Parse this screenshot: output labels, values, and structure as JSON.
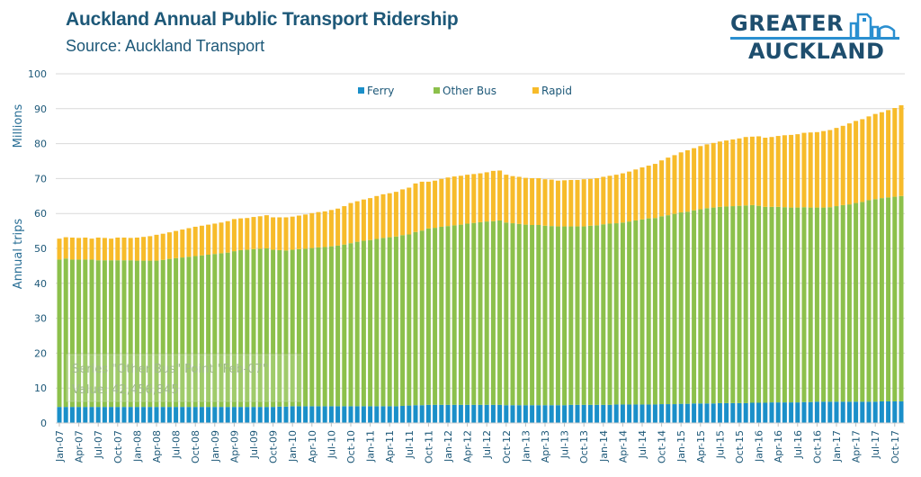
{
  "header": {
    "title": "Auckland Annual Public Transport Ridership",
    "subtitle": "Source: Auckland Transport"
  },
  "logo": {
    "line1": "GREATER",
    "line2": "AUCKLAND",
    "icon": "city-buildings-icon"
  },
  "colors": {
    "ferry": "#1a8fc9",
    "other_bus": "#8cc04b",
    "rapid": "#f7bb2a",
    "grid": "#d9d9d9",
    "text": "#1d5878"
  },
  "tooltip": {
    "line1": "Series \"Other Bus\" Point \"Feb-07\"",
    "line2": "Value: 42,456,845"
  },
  "chart_data": {
    "type": "bar",
    "stacked": true,
    "title": "Auckland Annual Public Transport Ridership",
    "subtitle": "Source: Auckland Transport",
    "xlabel": "",
    "ylabel": "Annual trips",
    "yunit_label": "Millions",
    "ylim": [
      0,
      100
    ],
    "yticks": [
      0,
      10,
      20,
      30,
      40,
      50,
      60,
      70,
      80,
      90,
      100
    ],
    "grid": true,
    "legend_position": "top-center",
    "tick_every": 3,
    "categories": [
      "Jan-07",
      "Feb-07",
      "Mar-07",
      "Apr-07",
      "May-07",
      "Jun-07",
      "Jul-07",
      "Aug-07",
      "Sep-07",
      "Oct-07",
      "Nov-07",
      "Dec-07",
      "Jan-08",
      "Feb-08",
      "Mar-08",
      "Apr-08",
      "May-08",
      "Jun-08",
      "Jul-08",
      "Aug-08",
      "Sep-08",
      "Oct-08",
      "Nov-08",
      "Dec-08",
      "Jan-09",
      "Feb-09",
      "Mar-09",
      "Apr-09",
      "May-09",
      "Jun-09",
      "Jul-09",
      "Aug-09",
      "Sep-09",
      "Oct-09",
      "Nov-09",
      "Dec-09",
      "Jan-10",
      "Feb-10",
      "Mar-10",
      "Apr-10",
      "May-10",
      "Jun-10",
      "Jul-10",
      "Aug-10",
      "Sep-10",
      "Oct-10",
      "Nov-10",
      "Dec-10",
      "Jan-11",
      "Feb-11",
      "Mar-11",
      "Apr-11",
      "May-11",
      "Jun-11",
      "Jul-11",
      "Aug-11",
      "Sep-11",
      "Oct-11",
      "Nov-11",
      "Dec-11",
      "Jan-12",
      "Feb-12",
      "Mar-12",
      "Apr-12",
      "May-12",
      "Jun-12",
      "Jul-12",
      "Aug-12",
      "Sep-12",
      "Oct-12",
      "Nov-12",
      "Dec-12",
      "Jan-13",
      "Feb-13",
      "Mar-13",
      "Apr-13",
      "May-13",
      "Jun-13",
      "Jul-13",
      "Aug-13",
      "Sep-13",
      "Oct-13",
      "Nov-13",
      "Dec-13",
      "Jan-14",
      "Feb-14",
      "Mar-14",
      "Apr-14",
      "May-14",
      "Jun-14",
      "Jul-14",
      "Aug-14",
      "Sep-14",
      "Oct-14",
      "Nov-14",
      "Dec-14",
      "Jan-15",
      "Feb-15",
      "Mar-15",
      "Apr-15",
      "May-15",
      "Jun-15",
      "Jul-15",
      "Aug-15",
      "Sep-15",
      "Oct-15",
      "Nov-15",
      "Dec-15",
      "Jan-16",
      "Feb-16",
      "Mar-16",
      "Apr-16",
      "May-16",
      "Jun-16",
      "Jul-16",
      "Aug-16",
      "Sep-16",
      "Oct-16",
      "Nov-16",
      "Dec-16",
      "Jan-17",
      "Feb-17",
      "Mar-17",
      "Apr-17",
      "May-17",
      "Jun-17",
      "Jul-17",
      "Aug-17",
      "Sep-17",
      "Oct-17",
      "Nov-17"
    ],
    "series": [
      {
        "name": "Ferry",
        "color": "#1a8fc9",
        "values": [
          4.6,
          4.6,
          4.6,
          4.6,
          4.6,
          4.6,
          4.6,
          4.6,
          4.6,
          4.6,
          4.6,
          4.6,
          4.6,
          4.6,
          4.6,
          4.6,
          4.6,
          4.6,
          4.6,
          4.6,
          4.6,
          4.6,
          4.6,
          4.6,
          4.6,
          4.6,
          4.6,
          4.6,
          4.6,
          4.6,
          4.6,
          4.6,
          4.6,
          4.6,
          4.7,
          4.7,
          4.8,
          4.8,
          4.8,
          4.8,
          4.8,
          4.8,
          4.8,
          4.8,
          4.8,
          4.8,
          4.8,
          4.8,
          4.8,
          4.8,
          4.8,
          4.8,
          4.8,
          4.9,
          5.0,
          5.1,
          5.1,
          5.2,
          5.2,
          5.2,
          5.2,
          5.2,
          5.2,
          5.2,
          5.2,
          5.2,
          5.2,
          5.2,
          5.2,
          5.1,
          5.1,
          5.1,
          5.1,
          5.1,
          5.1,
          5.1,
          5.1,
          5.1,
          5.1,
          5.2,
          5.2,
          5.2,
          5.2,
          5.2,
          5.2,
          5.2,
          5.3,
          5.3,
          5.3,
          5.3,
          5.3,
          5.3,
          5.3,
          5.4,
          5.4,
          5.4,
          5.5,
          5.5,
          5.6,
          5.6,
          5.6,
          5.6,
          5.7,
          5.7,
          5.7,
          5.7,
          5.7,
          5.8,
          5.8,
          5.8,
          5.9,
          5.9,
          5.9,
          5.9,
          5.9,
          6.0,
          6.0,
          6.1,
          6.1,
          6.1,
          6.1,
          6.1,
          6.1,
          6.1,
          6.1,
          6.1,
          6.1,
          6.2,
          6.2,
          6.2,
          6.2
        ]
      },
      {
        "name": "Other Bus",
        "color": "#8cc04b",
        "values": [
          42.2,
          42.5,
          42.2,
          42.2,
          42.2,
          42.2,
          42.0,
          42.0,
          42.0,
          42.0,
          42.0,
          42.0,
          41.9,
          41.9,
          41.9,
          41.9,
          42.1,
          42.4,
          42.6,
          42.8,
          43.0,
          43.2,
          43.4,
          43.6,
          43.8,
          44.0,
          44.2,
          44.6,
          44.9,
          45.0,
          45.2,
          45.3,
          45.4,
          45.0,
          44.8,
          44.7,
          44.8,
          45.0,
          45.1,
          45.3,
          45.5,
          45.6,
          45.8,
          46.0,
          46.3,
          46.7,
          47.1,
          47.4,
          47.6,
          47.9,
          48.2,
          48.4,
          48.6,
          48.9,
          49.0,
          49.6,
          50.0,
          50.5,
          50.7,
          51.0,
          51.2,
          51.4,
          51.6,
          51.9,
          52.1,
          52.3,
          52.5,
          52.6,
          52.8,
          52.3,
          52.1,
          51.9,
          51.7,
          51.6,
          51.6,
          51.4,
          51.3,
          51.2,
          51.2,
          51.1,
          51.1,
          51.1,
          51.3,
          51.4,
          51.7,
          51.9,
          51.9,
          52.1,
          52.4,
          52.7,
          53.0,
          53.3,
          53.4,
          53.8,
          54.1,
          54.5,
          54.8,
          55.0,
          55.3,
          55.6,
          55.9,
          56.1,
          56.2,
          56.3,
          56.4,
          56.5,
          56.6,
          56.6,
          56.4,
          56.1,
          56.0,
          56.0,
          55.9,
          55.8,
          55.8,
          55.8,
          55.7,
          55.6,
          55.6,
          55.7,
          56.0,
          56.3,
          56.5,
          56.9,
          57.2,
          57.7,
          58.0,
          58.2,
          58.4,
          58.6,
          58.8
        ]
      },
      {
        "name": "Rapid",
        "color": "#f7bb2a",
        "values": [
          6.0,
          6.1,
          6.3,
          6.2,
          6.3,
          6.0,
          6.5,
          6.4,
          6.2,
          6.5,
          6.5,
          6.4,
          6.6,
          6.8,
          7.0,
          7.4,
          7.5,
          7.6,
          7.8,
          8.0,
          8.2,
          8.4,
          8.5,
          8.6,
          8.7,
          8.8,
          9.0,
          9.2,
          9.1,
          9.1,
          9.2,
          9.3,
          9.5,
          9.3,
          9.4,
          9.5,
          9.5,
          9.6,
          9.8,
          10.0,
          10.1,
          10.2,
          10.4,
          10.6,
          11.0,
          11.5,
          11.6,
          11.8,
          12.0,
          12.3,
          12.5,
          12.6,
          12.8,
          13.1,
          13.4,
          13.9,
          14.0,
          13.4,
          13.5,
          13.7,
          13.9,
          14.0,
          14.0,
          14.0,
          14.0,
          14.0,
          14.1,
          14.4,
          14.3,
          13.7,
          13.5,
          13.5,
          13.4,
          13.4,
          13.4,
          13.3,
          13.3,
          13.1,
          13.2,
          13.3,
          13.3,
          13.5,
          13.4,
          13.5,
          13.6,
          13.7,
          13.9,
          14.1,
          14.3,
          14.6,
          14.9,
          15.1,
          15.5,
          16.0,
          16.5,
          16.8,
          17.2,
          17.6,
          17.8,
          18.1,
          18.3,
          18.5,
          18.7,
          18.9,
          19.1,
          19.3,
          19.6,
          19.6,
          19.9,
          19.8,
          20.0,
          20.3,
          20.6,
          20.8,
          21.0,
          21.3,
          21.5,
          21.6,
          21.9,
          22.1,
          22.4,
          22.7,
          23.2,
          23.5,
          23.7,
          24.0,
          24.4,
          24.6,
          25.0,
          25.4,
          26.0
        ]
      }
    ]
  }
}
